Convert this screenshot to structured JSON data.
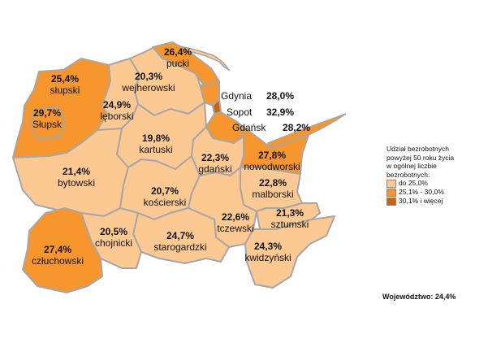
{
  "colors": {
    "low": "#fdc992",
    "mid": "#f7962d",
    "high": "#c9640c",
    "border": "#a6a6a6"
  },
  "regions": [
    {
      "id": "slupski",
      "name": "słupski",
      "value": "25,4%",
      "cls": "mid"
    },
    {
      "id": "slupsk",
      "name": "Słupsk",
      "value": "29,7%",
      "cls": "mid"
    },
    {
      "id": "pucki",
      "name": "pucki",
      "value": "26,4%",
      "cls": "mid"
    },
    {
      "id": "wejherowski",
      "name": "wejherowski",
      "value": "20,3%",
      "cls": "low"
    },
    {
      "id": "leborski",
      "name": "lęborski",
      "value": "24,9%",
      "cls": "low"
    },
    {
      "id": "kartuski",
      "name": "kartuski",
      "value": "19,8%",
      "cls": "low"
    },
    {
      "id": "bytowski",
      "name": "bytowski",
      "value": "21,4%",
      "cls": "low"
    },
    {
      "id": "gdanski",
      "name": "gdański",
      "value": "22,3%",
      "cls": "low"
    },
    {
      "id": "nowodworski",
      "name": "nowodworski",
      "value": "27,8%",
      "cls": "mid"
    },
    {
      "id": "koscierski",
      "name": "kościerski",
      "value": "20,7%",
      "cls": "low"
    },
    {
      "id": "malborski",
      "name": "malborski",
      "value": "22,8%",
      "cls": "low"
    },
    {
      "id": "tczewski",
      "name": "tczewski",
      "value": "22,6%",
      "cls": "low"
    },
    {
      "id": "sztumski",
      "name": "sztumski",
      "value": "21,3%",
      "cls": "low"
    },
    {
      "id": "chojnicki",
      "name": "chojnicki",
      "value": "20,5%",
      "cls": "low"
    },
    {
      "id": "starogardzki",
      "name": "starogardzki",
      "value": "24,7%",
      "cls": "low"
    },
    {
      "id": "kwidzynski",
      "name": "kwidzyński",
      "value": "24,3%",
      "cls": "low"
    },
    {
      "id": "czluchowski",
      "name": "człuchowski",
      "value": "27,4%",
      "cls": "mid"
    }
  ],
  "cities": [
    {
      "name": "Gdynia",
      "value": "28,0%"
    },
    {
      "name": "Sopot",
      "value": "32,9%"
    },
    {
      "name": "Gdańsk",
      "value": "28,2%"
    }
  ],
  "legend": {
    "title_lines": [
      "Udział bezrobotnych",
      "powyżej 50 roku życia",
      "w ogólnej liczbie",
      "bezrobotnych:"
    ],
    "items": [
      {
        "label": "do 25,0%",
        "cls": "low"
      },
      {
        "label": "25,1% - 30,0%",
        "cls": "mid"
      },
      {
        "label": "30,1% i więcej",
        "cls": "high"
      }
    ]
  },
  "voivodeship": "Województwo: 24,4%"
}
